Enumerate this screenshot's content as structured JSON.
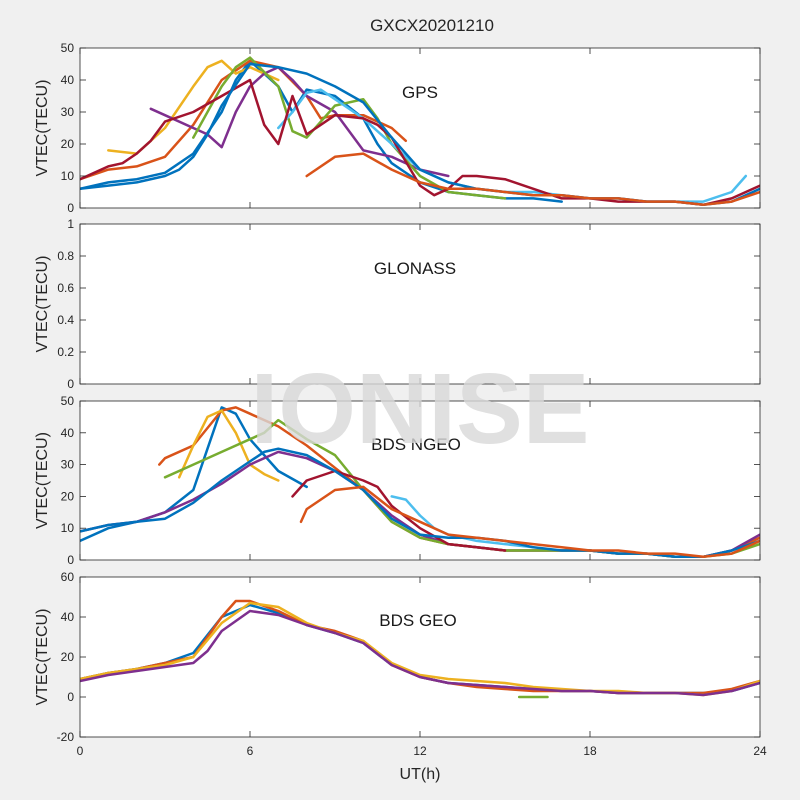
{
  "figure": {
    "title": "GXCX20201210",
    "watermark": "IONISE"
  },
  "chart_data": {
    "type": "line",
    "title": "GXCX20201210",
    "xlabel": "UT(h)",
    "xlim": [
      0,
      24
    ],
    "xticks": [
      0,
      6,
      12,
      18,
      24
    ],
    "colors": [
      "#0072bd",
      "#d95319",
      "#edb120",
      "#7e2f8e",
      "#77ac30",
      "#4dbeee",
      "#a2142f"
    ],
    "panels": [
      {
        "label": "GPS",
        "ylabel": "VTEC(TECU)",
        "ylim": [
          0,
          50
        ],
        "yticks": [
          0,
          10,
          20,
          30,
          40,
          50
        ],
        "series": [
          {
            "x": [
              0,
              1,
              2,
              3,
              4,
              5,
              5.5,
              6,
              7,
              7.5,
              8,
              9,
              10,
              10.5,
              11,
              12,
              13,
              14,
              15,
              16,
              17
            ],
            "y": [
              6,
              8,
              9,
              11,
              17,
              30,
              40,
              46,
              38,
              30,
              37,
              35,
              28,
              20,
              14,
              8,
              5,
              4,
              3,
              3,
              2
            ]
          },
          {
            "x": [
              0,
              1,
              2,
              3,
              4,
              5,
              6,
              7,
              8,
              8.5,
              9,
              10,
              11,
              11.5
            ],
            "y": [
              9,
              12,
              13,
              16,
              26,
              40,
              46,
              44,
              35,
              28,
              29,
              29,
              25,
              21
            ]
          },
          {
            "x": [
              1,
              2,
              3,
              4,
              4.5,
              5,
              5.5,
              6,
              7
            ],
            "y": [
              18,
              17,
              25,
              38,
              44,
              46,
              42,
              44,
              40
            ]
          },
          {
            "x": [
              2.5,
              3,
              4,
              4.5,
              5,
              5.5,
              6,
              6.5,
              7,
              7.5,
              8,
              9,
              10,
              11,
              12,
              13
            ],
            "y": [
              31,
              29,
              25,
              23,
              19,
              30,
              38,
              42,
              44,
              40,
              35,
              30,
              18,
              16,
              12,
              10
            ]
          },
          {
            "x": [
              4,
              5,
              5.5,
              6,
              7,
              7.5,
              8,
              9,
              10,
              10.5,
              11,
              12,
              13,
              14,
              15
            ],
            "y": [
              22,
              38,
              44,
              47,
              38,
              24,
              22,
              32,
              34,
              28,
              20,
              10,
              5,
              4,
              3
            ]
          },
          {
            "x": [
              7,
              7.5,
              8,
              8.5,
              9,
              10,
              11,
              12,
              13,
              14,
              15,
              16,
              17,
              18,
              19,
              20,
              21,
              22,
              23,
              23.5
            ],
            "y": [
              25,
              30,
              36,
              37,
              34,
              28,
              20,
              12,
              8,
              6,
              5,
              5,
              4,
              3,
              3,
              2,
              2,
              2,
              5,
              10
            ]
          },
          {
            "x": [
              0,
              0.5,
              1,
              1.5,
              2,
              2.5,
              3,
              4,
              5,
              6,
              6.5,
              7,
              7.5,
              8,
              9,
              10,
              10.5,
              11,
              12,
              12.5,
              13,
              13.5,
              14,
              15,
              16,
              17,
              18,
              19,
              20,
              21,
              22,
              23,
              24
            ],
            "y": [
              9,
              11,
              13,
              14,
              17,
              21,
              27,
              30,
              35,
              40,
              26,
              20,
              35,
              23,
              29,
              28,
              26,
              22,
              7,
              4,
              6,
              10,
              10,
              9,
              6,
              3,
              3,
              2,
              2,
              2,
              1,
              3,
              7
            ]
          },
          {
            "x": [
              0,
              1,
              2,
              3,
              3.5,
              4,
              4.5,
              5,
              6,
              7,
              8,
              9,
              10,
              11,
              12,
              13,
              14,
              15,
              16,
              17,
              18,
              19,
              20,
              21,
              22,
              23,
              24
            ],
            "y": [
              6,
              7,
              8,
              10,
              12,
              16,
              23,
              32,
              45,
              44,
              42,
              38,
              33,
              22,
              12,
              8,
              6,
              5,
              4,
              4,
              3,
              3,
              2,
              2,
              1,
              2,
              6
            ]
          },
          {
            "x": [
              8,
              9,
              10,
              11,
              12,
              13,
              14,
              15,
              16,
              17,
              18,
              19,
              20,
              21,
              22,
              23,
              24
            ],
            "y": [
              10,
              16,
              17,
              12,
              8,
              6,
              6,
              5,
              4,
              4,
              3,
              3,
              2,
              2,
              1,
              2,
              5
            ]
          }
        ]
      },
      {
        "label": "GLONASS",
        "ylabel": "VTEC(TECU)",
        "ylim": [
          0,
          1
        ],
        "yticks": [
          0,
          0.2,
          0.4,
          0.6,
          0.8,
          1
        ],
        "series": []
      },
      {
        "label": "BDS NGEO",
        "ylabel": "VTEC(TECU)",
        "ylim": [
          0,
          50
        ],
        "yticks": [
          0,
          10,
          20,
          30,
          40,
          50
        ],
        "series": [
          {
            "x": [
              0,
              1,
              2,
              3,
              4,
              4.5,
              5,
              5.5,
              6,
              7,
              8
            ],
            "y": [
              6,
              10,
              12,
              15,
              22,
              35,
              48,
              46,
              38,
              28,
              23
            ]
          },
          {
            "x": [
              2.8,
              3,
              4,
              5,
              5.5,
              6,
              7,
              8,
              9,
              10,
              11,
              12,
              13,
              14,
              15,
              16,
              17,
              18,
              19,
              20,
              21,
              22,
              23,
              24
            ],
            "y": [
              30,
              32,
              36,
              47,
              48,
              46,
              42,
              36,
              29,
              22,
              12,
              7,
              5,
              4,
              3,
              3,
              3,
              3,
              2,
              2,
              1,
              1,
              3,
              7
            ]
          },
          {
            "x": [
              3.5,
              4,
              4.5,
              5,
              5.5,
              6,
              6.5,
              7
            ],
            "y": [
              26,
              36,
              45,
              47,
              40,
              30,
              27,
              25
            ]
          },
          {
            "x": [
              0,
              1,
              2,
              3,
              4,
              5,
              6,
              7,
              8,
              9,
              10,
              11,
              12,
              13,
              14,
              15,
              16,
              17,
              18,
              19,
              20,
              21,
              22,
              23,
              24
            ],
            "y": [
              9,
              11,
              12,
              15,
              19,
              24,
              30,
              34,
              32,
              28,
              22,
              14,
              8,
              5,
              4,
              3,
              3,
              3,
              3,
              2,
              2,
              1,
              1,
              3,
              8
            ]
          },
          {
            "x": [
              3,
              4,
              5,
              6,
              6.5,
              7,
              8,
              9,
              10,
              11,
              12,
              13,
              14,
              15,
              16,
              17,
              18,
              19,
              20,
              21,
              22,
              23,
              24
            ],
            "y": [
              26,
              30,
              34,
              38,
              40,
              44,
              38,
              33,
              22,
              12,
              7,
              5,
              4,
              3,
              3,
              3,
              3,
              2,
              2,
              1,
              1,
              2,
              5
            ]
          },
          {
            "x": [
              11,
              11.5,
              12,
              12.5,
              13,
              14,
              15,
              16
            ],
            "y": [
              20,
              19,
              14,
              10,
              8,
              6,
              5,
              4
            ]
          },
          {
            "x": [
              7.5,
              8,
              9,
              10,
              10.5,
              11,
              12,
              13,
              14,
              15
            ],
            "y": [
              20,
              25,
              28,
              25,
              23,
              17,
              10,
              5,
              4,
              3
            ]
          },
          {
            "x": [
              0,
              1,
              2,
              3,
              4,
              5,
              6,
              6.5,
              7,
              8,
              9,
              10,
              11,
              12,
              13,
              14,
              15,
              16,
              17,
              18,
              19,
              20,
              21,
              22,
              23,
              24
            ],
            "y": [
              9,
              11,
              12,
              13,
              18,
              25,
              31,
              34,
              35,
              33,
              28,
              22,
              13,
              8,
              7,
              7,
              6,
              4,
              3,
              3,
              2,
              2,
              1,
              1,
              3,
              6
            ]
          },
          {
            "x": [
              7.8,
              8,
              9,
              10,
              11,
              12,
              13,
              14,
              15,
              16,
              17,
              18,
              19,
              20,
              21,
              22,
              23,
              24
            ],
            "y": [
              12,
              16,
              22,
              23,
              16,
              12,
              8,
              7,
              6,
              5,
              4,
              3,
              3,
              2,
              2,
              1,
              2,
              6
            ]
          }
        ]
      },
      {
        "label": "BDS GEO",
        "ylabel": "VTEC(TECU)",
        "ylim": [
          -20,
          60
        ],
        "yticks": [
          -20,
          0,
          20,
          40,
          60
        ],
        "series": [
          {
            "x": [
              0,
              1,
              2,
              3,
              4,
              5,
              6,
              7,
              8,
              9,
              10,
              11,
              12,
              13,
              14,
              15,
              16,
              17,
              18,
              19,
              20,
              21,
              22,
              23,
              24
            ],
            "y": [
              9,
              12,
              14,
              17,
              22,
              40,
              46,
              42,
              36,
              32,
              27,
              16,
              10,
              7,
              6,
              5,
              4,
              3,
              3,
              2,
              2,
              2,
              2,
              3,
              7
            ]
          },
          {
            "x": [
              0,
              1,
              2,
              3,
              4,
              5,
              5.5,
              6,
              7,
              8,
              9,
              10,
              11,
              12,
              13,
              14,
              15,
              16,
              17,
              18,
              19,
              20,
              21,
              22,
              23,
              24
            ],
            "y": [
              9,
              12,
              14,
              17,
              20,
              40,
              48,
              48,
              43,
              36,
              33,
              28,
              16,
              10,
              7,
              5,
              4,
              3,
              3,
              3,
              2,
              2,
              2,
              2,
              4,
              8
            ]
          },
          {
            "x": [
              0,
              1,
              2,
              3,
              4,
              5,
              6,
              7,
              8,
              9,
              10,
              11,
              12,
              13,
              14,
              15,
              16,
              17,
              18,
              19,
              20,
              21,
              22,
              23,
              24
            ],
            "y": [
              9,
              12,
              14,
              16,
              20,
              37,
              47,
              45,
              37,
              32,
              28,
              17,
              11,
              9,
              8,
              7,
              5,
              4,
              3,
              3,
              2,
              2,
              1,
              3,
              8
            ]
          },
          {
            "x": [
              0,
              1,
              2,
              3,
              4,
              4.5,
              5,
              6,
              7,
              8,
              9,
              10,
              11,
              12,
              13,
              14,
              15,
              16,
              17,
              18,
              19,
              20,
              21,
              22,
              23,
              24
            ],
            "y": [
              8,
              11,
              13,
              15,
              17,
              23,
              33,
              43,
              41,
              36,
              32,
              27,
              16,
              10,
              7,
              6,
              5,
              4,
              3,
              3,
              2,
              2,
              2,
              1,
              3,
              7
            ]
          },
          {
            "x": [
              15.5,
              16,
              16.5
            ],
            "y": [
              0,
              0,
              0
            ]
          }
        ]
      }
    ]
  }
}
